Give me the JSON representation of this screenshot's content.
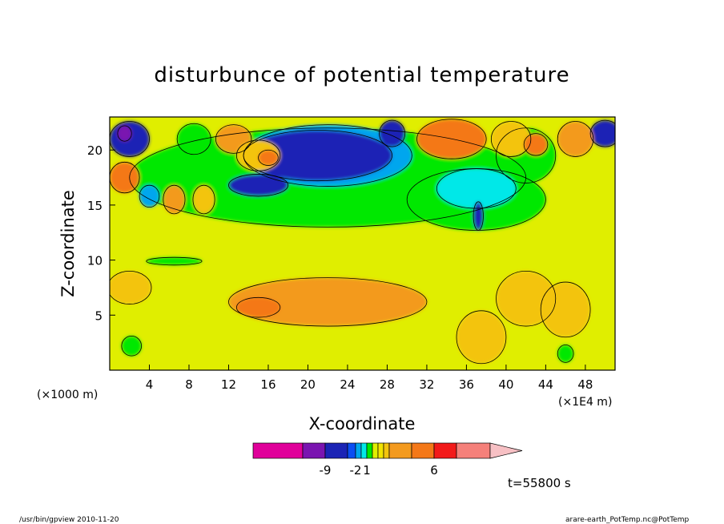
{
  "chart_data": {
    "type": "heatmap",
    "title": "disturbunce of potential temperature",
    "xlabel": "X-coordinate",
    "ylabel": "Z-coordinate",
    "x_unit_left": "(×1000 m)",
    "x_unit_right": "(×1E4 m)",
    "xlim": [
      0,
      51
    ],
    "ylim": [
      0,
      23
    ],
    "xticks": [
      4,
      8,
      12,
      16,
      20,
      24,
      28,
      32,
      36,
      40,
      44,
      48
    ],
    "yticks": [
      5,
      10,
      15,
      20
    ],
    "grid": false,
    "time_label": "t=55800 s",
    "colorbar": {
      "colors": [
        "#e0009a",
        "#7a14b0",
        "#1b24b5",
        "#0a4ef2",
        "#00a6ee",
        "#00e8e8",
        "#00e800",
        "#e0ee00",
        "#f2e400",
        "#f3c40e",
        "#f39a1e",
        "#f47818",
        "#f21a1a",
        "#f5807a",
        "#f7c0c4"
      ],
      "tick_labels": [
        "-9",
        "-2",
        "1",
        "6"
      ]
    },
    "blobs": [
      {
        "x": 22,
        "z": 6.2,
        "rx": 10,
        "ry": 2.2,
        "color": "#f39a1e"
      },
      {
        "x": 15,
        "z": 5.7,
        "rx": 2.2,
        "ry": 0.9,
        "color": "#f47818"
      },
      {
        "x": 37.5,
        "z": 3.0,
        "rx": 2.5,
        "ry": 2.4,
        "color": "#f3c40e"
      },
      {
        "x": 2,
        "z": 7.5,
        "rx": 2.2,
        "ry": 1.5,
        "color": "#f3c40e"
      },
      {
        "x": 22,
        "z": 17.5,
        "rx": 20,
        "ry": 4.5,
        "color": "#00e800"
      },
      {
        "x": 37,
        "z": 15.5,
        "rx": 7,
        "ry": 2.8,
        "color": "#00e800"
      },
      {
        "x": 42,
        "z": 19.5,
        "rx": 3,
        "ry": 2.5,
        "color": "#00e800"
      },
      {
        "x": 8.5,
        "z": 21.0,
        "rx": 1.7,
        "ry": 1.4,
        "color": "#00e800"
      },
      {
        "x": 37,
        "z": 16.5,
        "rx": 4,
        "ry": 1.8,
        "color": "#00e8e8"
      },
      {
        "x": 22,
        "z": 19.5,
        "rx": 8.5,
        "ry": 2.8,
        "color": "#00a6ee"
      },
      {
        "x": 21,
        "z": 19.5,
        "rx": 7.5,
        "ry": 2.3,
        "color": "#1b24b5"
      },
      {
        "x": 15,
        "z": 16.8,
        "rx": 3,
        "ry": 1.0,
        "color": "#1b24b5"
      },
      {
        "x": 28.5,
        "z": 21.5,
        "rx": 1.3,
        "ry": 1.2,
        "color": "#1b24b5"
      },
      {
        "x": 37.2,
        "z": 14.0,
        "rx": 0.5,
        "ry": 1.3,
        "color": "#1b24b5"
      },
      {
        "x": 2,
        "z": 21,
        "rx": 2,
        "ry": 1.6,
        "color": "#1b24b5"
      },
      {
        "x": 1.5,
        "z": 21.5,
        "rx": 0.7,
        "ry": 0.7,
        "color": "#7a14b0"
      },
      {
        "x": 50,
        "z": 21.5,
        "rx": 1.5,
        "ry": 1.2,
        "color": "#1b24b5"
      },
      {
        "x": 1.5,
        "z": 17.5,
        "rx": 1.5,
        "ry": 1.4,
        "color": "#f47818"
      },
      {
        "x": 4,
        "z": 15.8,
        "rx": 1,
        "ry": 1.0,
        "color": "#00a6ee"
      },
      {
        "x": 6.5,
        "z": 15.5,
        "rx": 1.1,
        "ry": 1.3,
        "color": "#f39a1e"
      },
      {
        "x": 9.5,
        "z": 15.5,
        "rx": 1.1,
        "ry": 1.3,
        "color": "#f3c40e"
      },
      {
        "x": 12.5,
        "z": 21.0,
        "rx": 1.8,
        "ry": 1.3,
        "color": "#f39a1e"
      },
      {
        "x": 15,
        "z": 19.5,
        "rx": 2.2,
        "ry": 1.4,
        "color": "#f3c40e"
      },
      {
        "x": 16,
        "z": 19.3,
        "rx": 1.0,
        "ry": 0.7,
        "color": "#f47818"
      },
      {
        "x": 34.5,
        "z": 21.0,
        "rx": 3.5,
        "ry": 1.8,
        "color": "#f47818"
      },
      {
        "x": 40.5,
        "z": 21.0,
        "rx": 2,
        "ry": 1.6,
        "color": "#f3c40e"
      },
      {
        "x": 43,
        "z": 20.5,
        "rx": 1.2,
        "ry": 1.0,
        "color": "#f47818"
      },
      {
        "x": 47,
        "z": 21.0,
        "rx": 1.8,
        "ry": 1.6,
        "color": "#f39a1e"
      },
      {
        "x": 2.2,
        "z": 2.2,
        "rx": 1.0,
        "ry": 0.9,
        "color": "#00e800"
      },
      {
        "x": 46,
        "z": 1.5,
        "rx": 0.8,
        "ry": 0.8,
        "color": "#00e800"
      },
      {
        "x": 6.5,
        "z": 9.9,
        "rx": 2.8,
        "ry": 0.35,
        "color": "#00e800"
      },
      {
        "x": 42,
        "z": 6.5,
        "rx": 3,
        "ry": 2.5,
        "color": "#f3c40e"
      },
      {
        "x": 46,
        "z": 5.5,
        "rx": 2.5,
        "ry": 2.5,
        "color": "#f3c40e"
      }
    ]
  },
  "footer": {
    "left": "/usr/bin/gpview  2010-11-20",
    "right": "arare-earth_PotTemp.nc@PotTemp"
  }
}
